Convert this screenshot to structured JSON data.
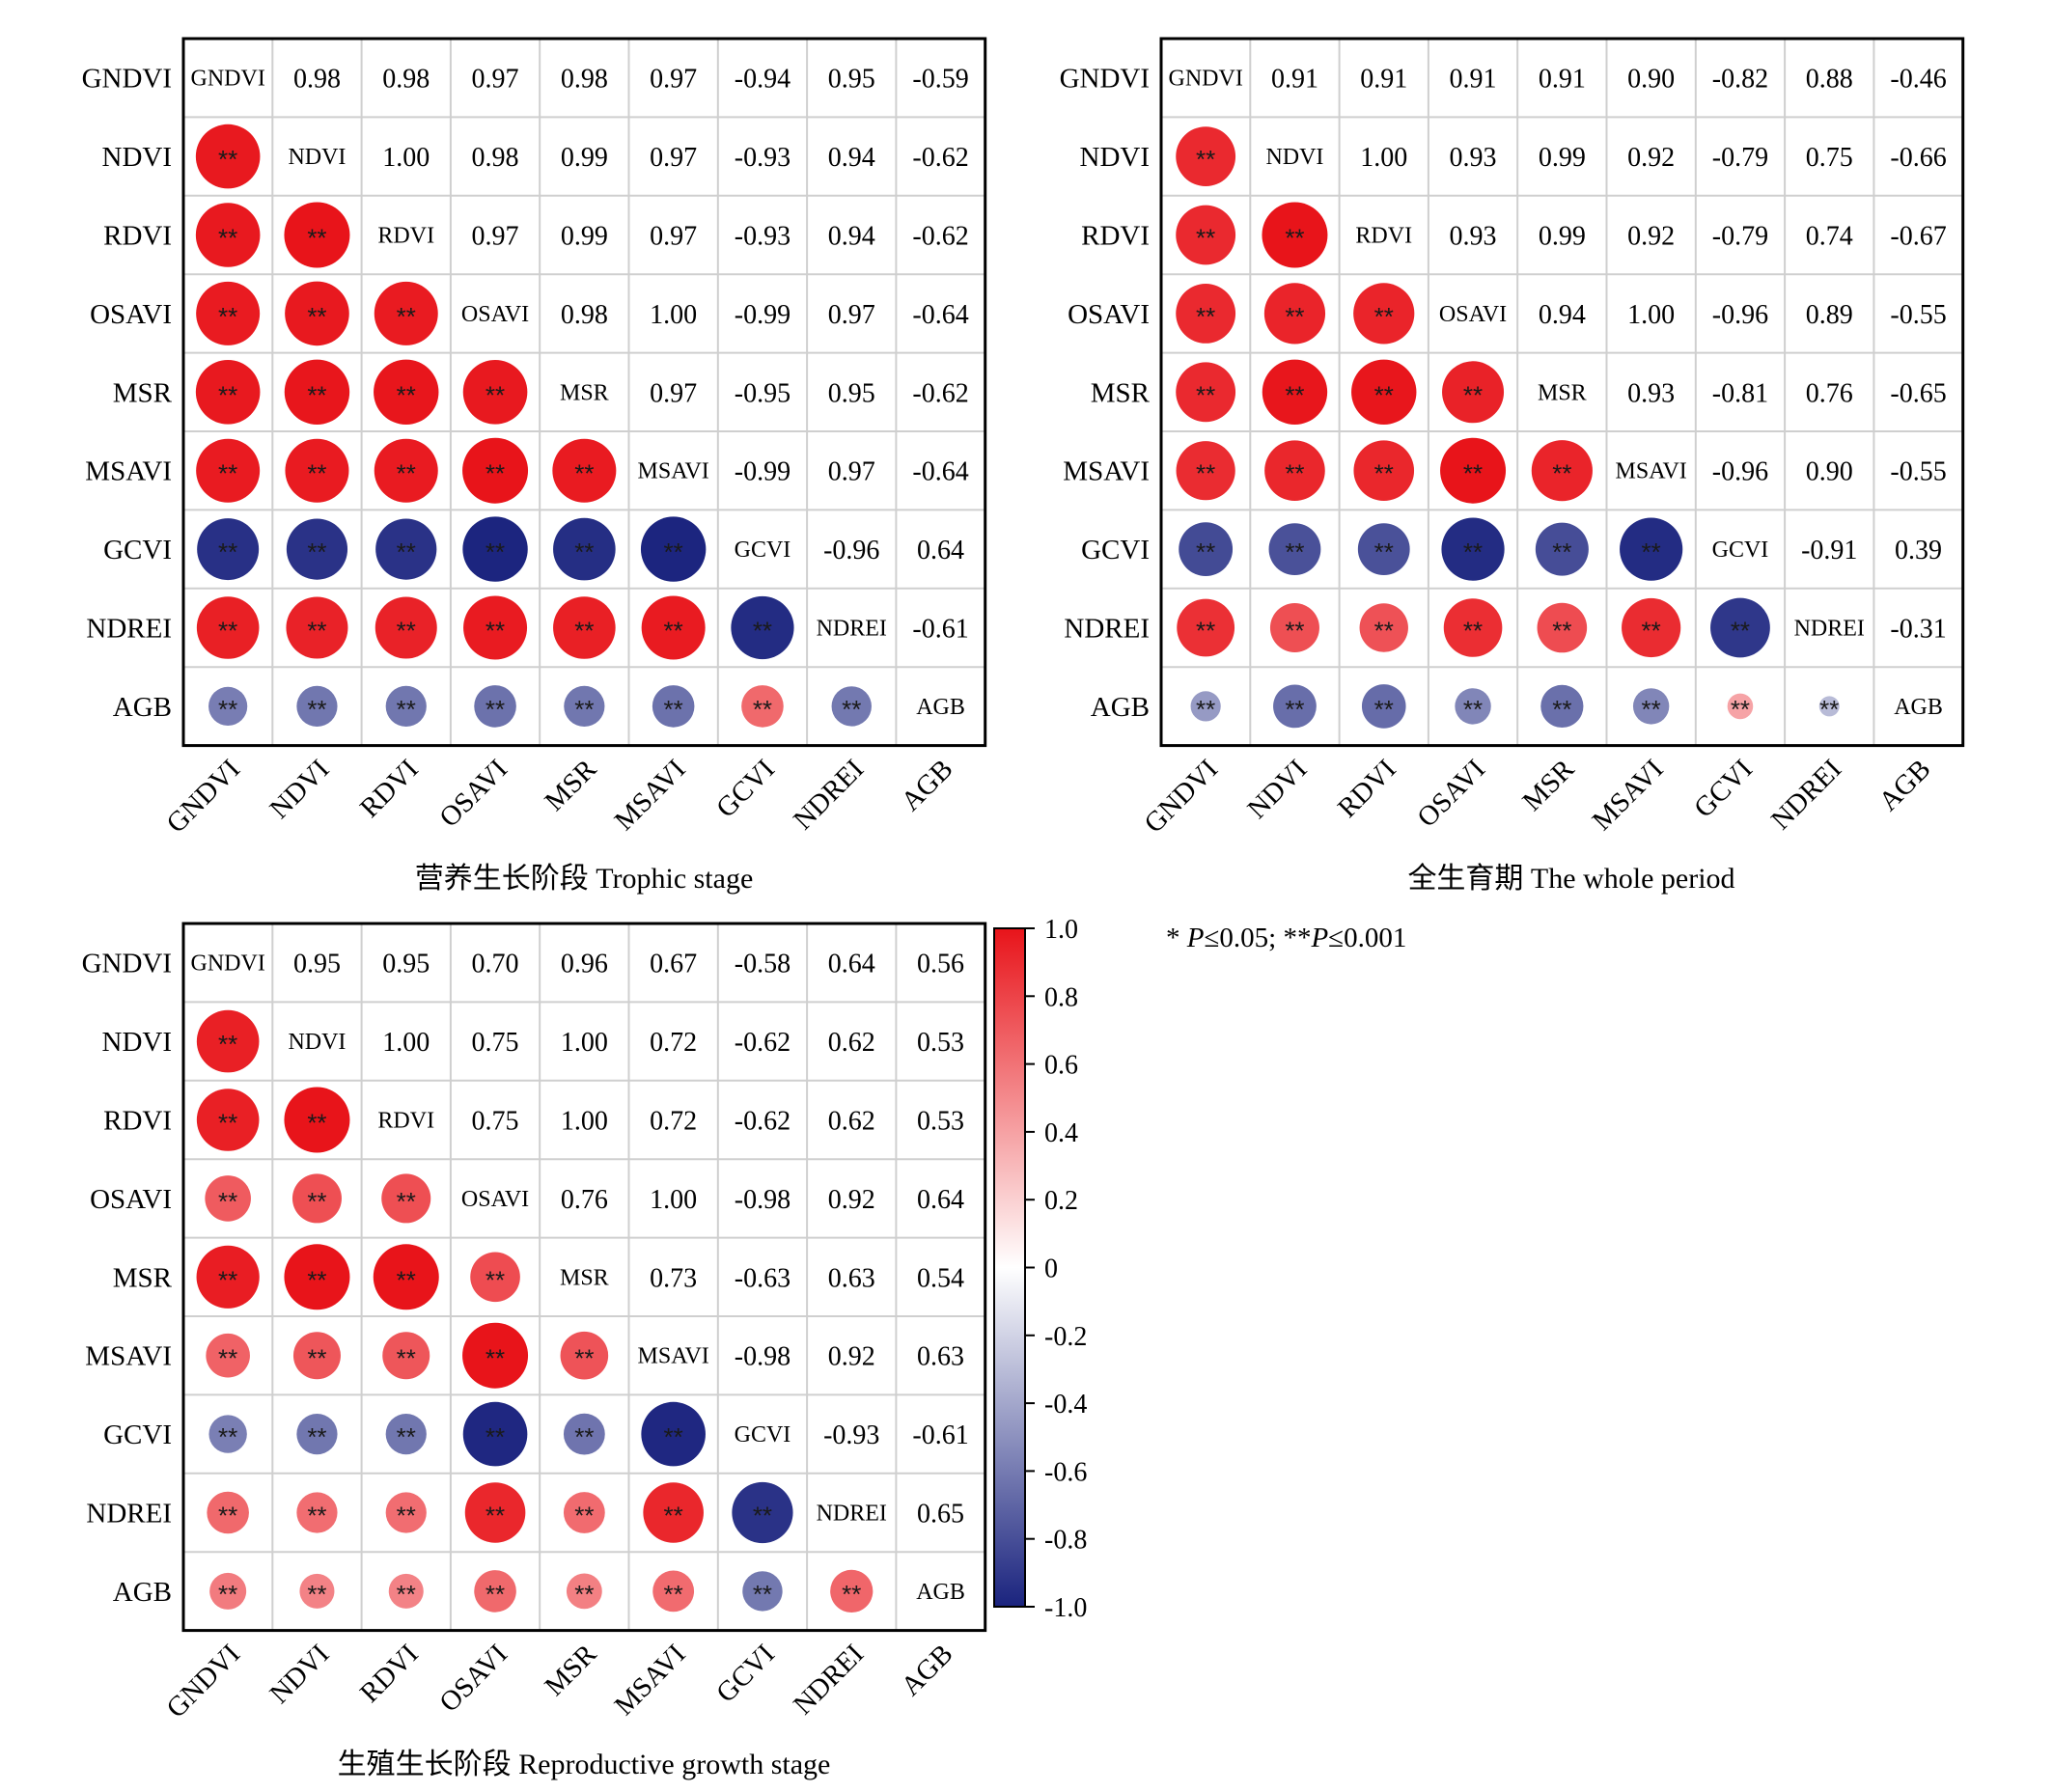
{
  "chart_data": [
    {
      "type": "heatmap",
      "variant": "correlation-matrix",
      "title": "营养生长阶段 Trophic stage",
      "variables": [
        "GNDVI",
        "NDVI",
        "RDVI",
        "OSAVI",
        "MSR",
        "MSAVI",
        "GCVI",
        "NDREI",
        "AGB"
      ],
      "matrix": [
        [
          1,
          0.98,
          0.98,
          0.97,
          0.98,
          0.97,
          -0.94,
          0.95,
          -0.59
        ],
        [
          0.98,
          1,
          1.0,
          0.98,
          0.99,
          0.97,
          -0.93,
          0.94,
          -0.62
        ],
        [
          0.98,
          1.0,
          1,
          0.97,
          0.99,
          0.97,
          -0.93,
          0.94,
          -0.62
        ],
        [
          0.97,
          0.98,
          0.97,
          1,
          0.98,
          1.0,
          -0.99,
          0.97,
          -0.64
        ],
        [
          0.98,
          0.99,
          0.99,
          0.98,
          1,
          0.97,
          -0.95,
          0.95,
          -0.62
        ],
        [
          0.97,
          0.97,
          0.97,
          1.0,
          0.97,
          1,
          -0.99,
          0.97,
          -0.64
        ],
        [
          -0.94,
          -0.93,
          -0.93,
          -0.99,
          -0.95,
          -0.99,
          1,
          -0.96,
          0.64
        ],
        [
          0.95,
          0.94,
          0.94,
          0.97,
          0.95,
          0.97,
          -0.96,
          1,
          -0.61
        ],
        [
          -0.59,
          -0.62,
          -0.62,
          -0.64,
          -0.62,
          -0.64,
          0.64,
          -0.61,
          1
        ]
      ],
      "lower_triangle": "circles",
      "upper_triangle": "values",
      "significance_mark": "**"
    },
    {
      "type": "heatmap",
      "variant": "correlation-matrix",
      "title": "全生育期 The whole period",
      "variables": [
        "GNDVI",
        "NDVI",
        "RDVI",
        "OSAVI",
        "MSR",
        "MSAVI",
        "GCVI",
        "NDREI",
        "AGB"
      ],
      "matrix": [
        [
          1,
          0.91,
          0.91,
          0.91,
          0.91,
          0.9,
          -0.82,
          0.88,
          -0.46
        ],
        [
          0.91,
          1,
          1.0,
          0.93,
          0.99,
          0.92,
          -0.79,
          0.75,
          -0.66
        ],
        [
          0.91,
          1.0,
          1,
          0.93,
          0.99,
          0.92,
          -0.79,
          0.74,
          -0.67
        ],
        [
          0.91,
          0.93,
          0.93,
          1,
          0.94,
          1.0,
          -0.96,
          0.89,
          -0.55
        ],
        [
          0.91,
          0.99,
          0.99,
          0.94,
          1,
          0.93,
          -0.81,
          0.76,
          -0.65
        ],
        [
          0.9,
          0.92,
          0.92,
          1.0,
          0.93,
          1,
          -0.96,
          0.9,
          -0.55
        ],
        [
          -0.82,
          -0.79,
          -0.79,
          -0.96,
          -0.81,
          -0.96,
          1,
          -0.91,
          0.39
        ],
        [
          0.88,
          0.75,
          0.74,
          0.89,
          0.76,
          0.9,
          -0.91,
          1,
          -0.31
        ],
        [
          -0.46,
          -0.66,
          -0.67,
          -0.55,
          -0.65,
          -0.55,
          0.39,
          -0.31,
          1
        ]
      ],
      "lower_triangle": "circles",
      "upper_triangle": "values",
      "significance_mark": "**"
    },
    {
      "type": "heatmap",
      "variant": "correlation-matrix",
      "title": "生殖生长阶段 Reproductive growth stage",
      "variables": [
        "GNDVI",
        "NDVI",
        "RDVI",
        "OSAVI",
        "MSR",
        "MSAVI",
        "GCVI",
        "NDREI",
        "AGB"
      ],
      "matrix": [
        [
          1,
          0.95,
          0.95,
          0.7,
          0.96,
          0.67,
          -0.58,
          0.64,
          0.56
        ],
        [
          0.95,
          1,
          1.0,
          0.75,
          1.0,
          0.72,
          -0.62,
          0.62,
          0.53
        ],
        [
          0.95,
          1.0,
          1,
          0.75,
          1.0,
          0.72,
          -0.62,
          0.62,
          0.53
        ],
        [
          0.7,
          0.75,
          0.75,
          1,
          0.76,
          1.0,
          -0.98,
          0.92,
          0.64
        ],
        [
          0.96,
          1.0,
          1.0,
          0.76,
          1,
          0.73,
          -0.63,
          0.63,
          0.54
        ],
        [
          0.67,
          0.72,
          0.72,
          1.0,
          0.73,
          1,
          -0.98,
          0.92,
          0.63
        ],
        [
          -0.58,
          -0.62,
          -0.62,
          -0.98,
          -0.63,
          -0.98,
          1,
          -0.93,
          -0.61
        ],
        [
          0.64,
          0.62,
          0.62,
          0.92,
          0.63,
          0.92,
          -0.93,
          1,
          0.65
        ],
        [
          0.56,
          0.53,
          0.53,
          0.64,
          0.54,
          0.63,
          -0.61,
          0.65,
          1
        ]
      ],
      "lower_triangle": "circles",
      "upper_triangle": "values",
      "significance_mark": "**"
    }
  ],
  "colorbar": {
    "range": [
      -1.0,
      1.0
    ],
    "ticks": [
      "1.0",
      "0.8",
      "0.6",
      "0.4",
      "0.2",
      "0",
      "-0.2",
      "-0.4",
      "-0.6",
      "-0.8",
      "-1.0"
    ],
    "colors": {
      "negative": "#1a237e",
      "neutral": "#ffffff",
      "positive": "#e8141a"
    }
  },
  "note": {
    "p1": "* ",
    "p_italic_1": "P",
    "p2": "≤0.05; **",
    "p_italic_2": "P",
    "p3": "≤0.001"
  }
}
